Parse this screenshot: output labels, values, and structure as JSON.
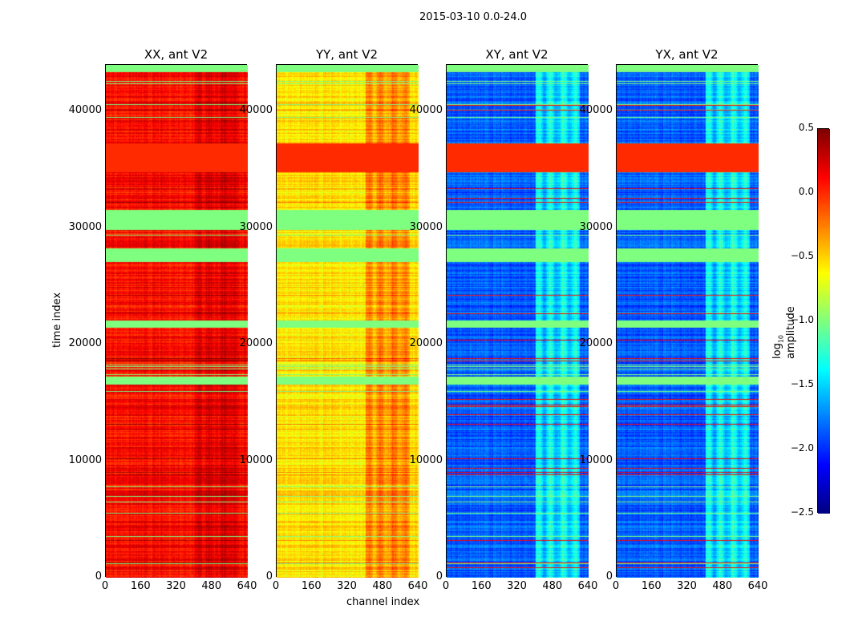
{
  "chart_data": {
    "type": "heatmap",
    "title": "2015-03-10 0.0-24.0",
    "xlabel": "channel index",
    "ylabel": "time index",
    "xlim": [
      0,
      640
    ],
    "ylim": [
      0,
      44000
    ],
    "xticks": [
      "0",
      "160",
      "320",
      "480",
      "640"
    ],
    "yticks": [
      "0",
      "10000",
      "20000",
      "30000",
      "40000"
    ],
    "panels": [
      {
        "title": "XX, ant V2",
        "base_log10_amplitude": 0.1,
        "hot_channels_offset": 0.15
      },
      {
        "title": "YY, ant V2",
        "base_log10_amplitude": -0.55,
        "hot_channels_offset": 0.35
      },
      {
        "title": "XY, ant V2",
        "base_log10_amplitude": -1.85,
        "hot_channels_offset": 0.6
      },
      {
        "title": "YX, ant V2",
        "base_log10_amplitude": -1.85,
        "hot_channels_offset": 0.6
      }
    ],
    "flagged_bands": [
      {
        "from": 43450,
        "to": 44000,
        "value": -1.0
      },
      {
        "from": 34800,
        "to": 37300,
        "value": 0.0
      },
      {
        "from": 29900,
        "to": 31600,
        "value": -1.0
      },
      {
        "from": 27100,
        "to": 28300,
        "value": -1.0
      },
      {
        "from": 21500,
        "to": 22100,
        "value": -1.0
      },
      {
        "from": 16600,
        "to": 17300,
        "value": -1.0
      }
    ],
    "colorbar": {
      "label": "log10 amplitude",
      "label_main": "log",
      "label_sub": "10",
      "label_rest": " amplitude",
      "range": [
        -2.5,
        0.5
      ],
      "ticks": [
        "0.5",
        "0.0",
        "−0.5",
        "−1.0",
        "−1.5",
        "−2.0",
        "−2.5"
      ],
      "colormap": "jet"
    }
  }
}
